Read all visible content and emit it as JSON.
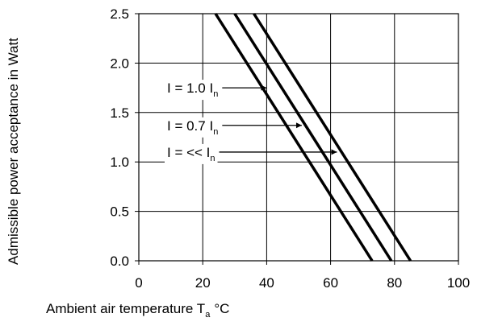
{
  "chart_data": {
    "type": "line",
    "xlabel": "Ambient air temperature",
    "xlabel_symbol": "T",
    "xlabel_symbol_sub": "a",
    "xlabel_unit": "°C",
    "ylabel": "Admissible power acceptance in Watt",
    "xlim": [
      0,
      100
    ],
    "ylim": [
      0,
      2.5
    ],
    "x_ticks": [
      0,
      20,
      40,
      60,
      80,
      100
    ],
    "x_tick_labels": [
      "0",
      "20",
      "40",
      "60",
      "80",
      "100"
    ],
    "y_ticks": [
      0,
      0.5,
      1.0,
      1.5,
      2.0,
      2.5
    ],
    "y_tick_labels": [
      "0.0",
      "0.5",
      "1.0",
      "1.5",
      "2.0",
      "2.5"
    ],
    "grid": true,
    "line_color": "#000000",
    "series": [
      {
        "label_main": "I = 1.0 I",
        "label_sub": "n",
        "x": [
          24,
          73
        ],
        "y": [
          2.5,
          0
        ],
        "annotation_value": 1.75,
        "arrow_tip_x": 40
      },
      {
        "label_main": "I = 0.7 I",
        "label_sub": "n",
        "x": [
          30,
          79
        ],
        "y": [
          2.5,
          0
        ],
        "annotation_value": 1.37,
        "arrow_tip_x": 51
      },
      {
        "label_main": "I = << I",
        "label_sub": "n",
        "x": [
          36,
          85
        ],
        "y": [
          2.5,
          0
        ],
        "annotation_value": 1.1,
        "arrow_tip_x": 62
      }
    ]
  }
}
